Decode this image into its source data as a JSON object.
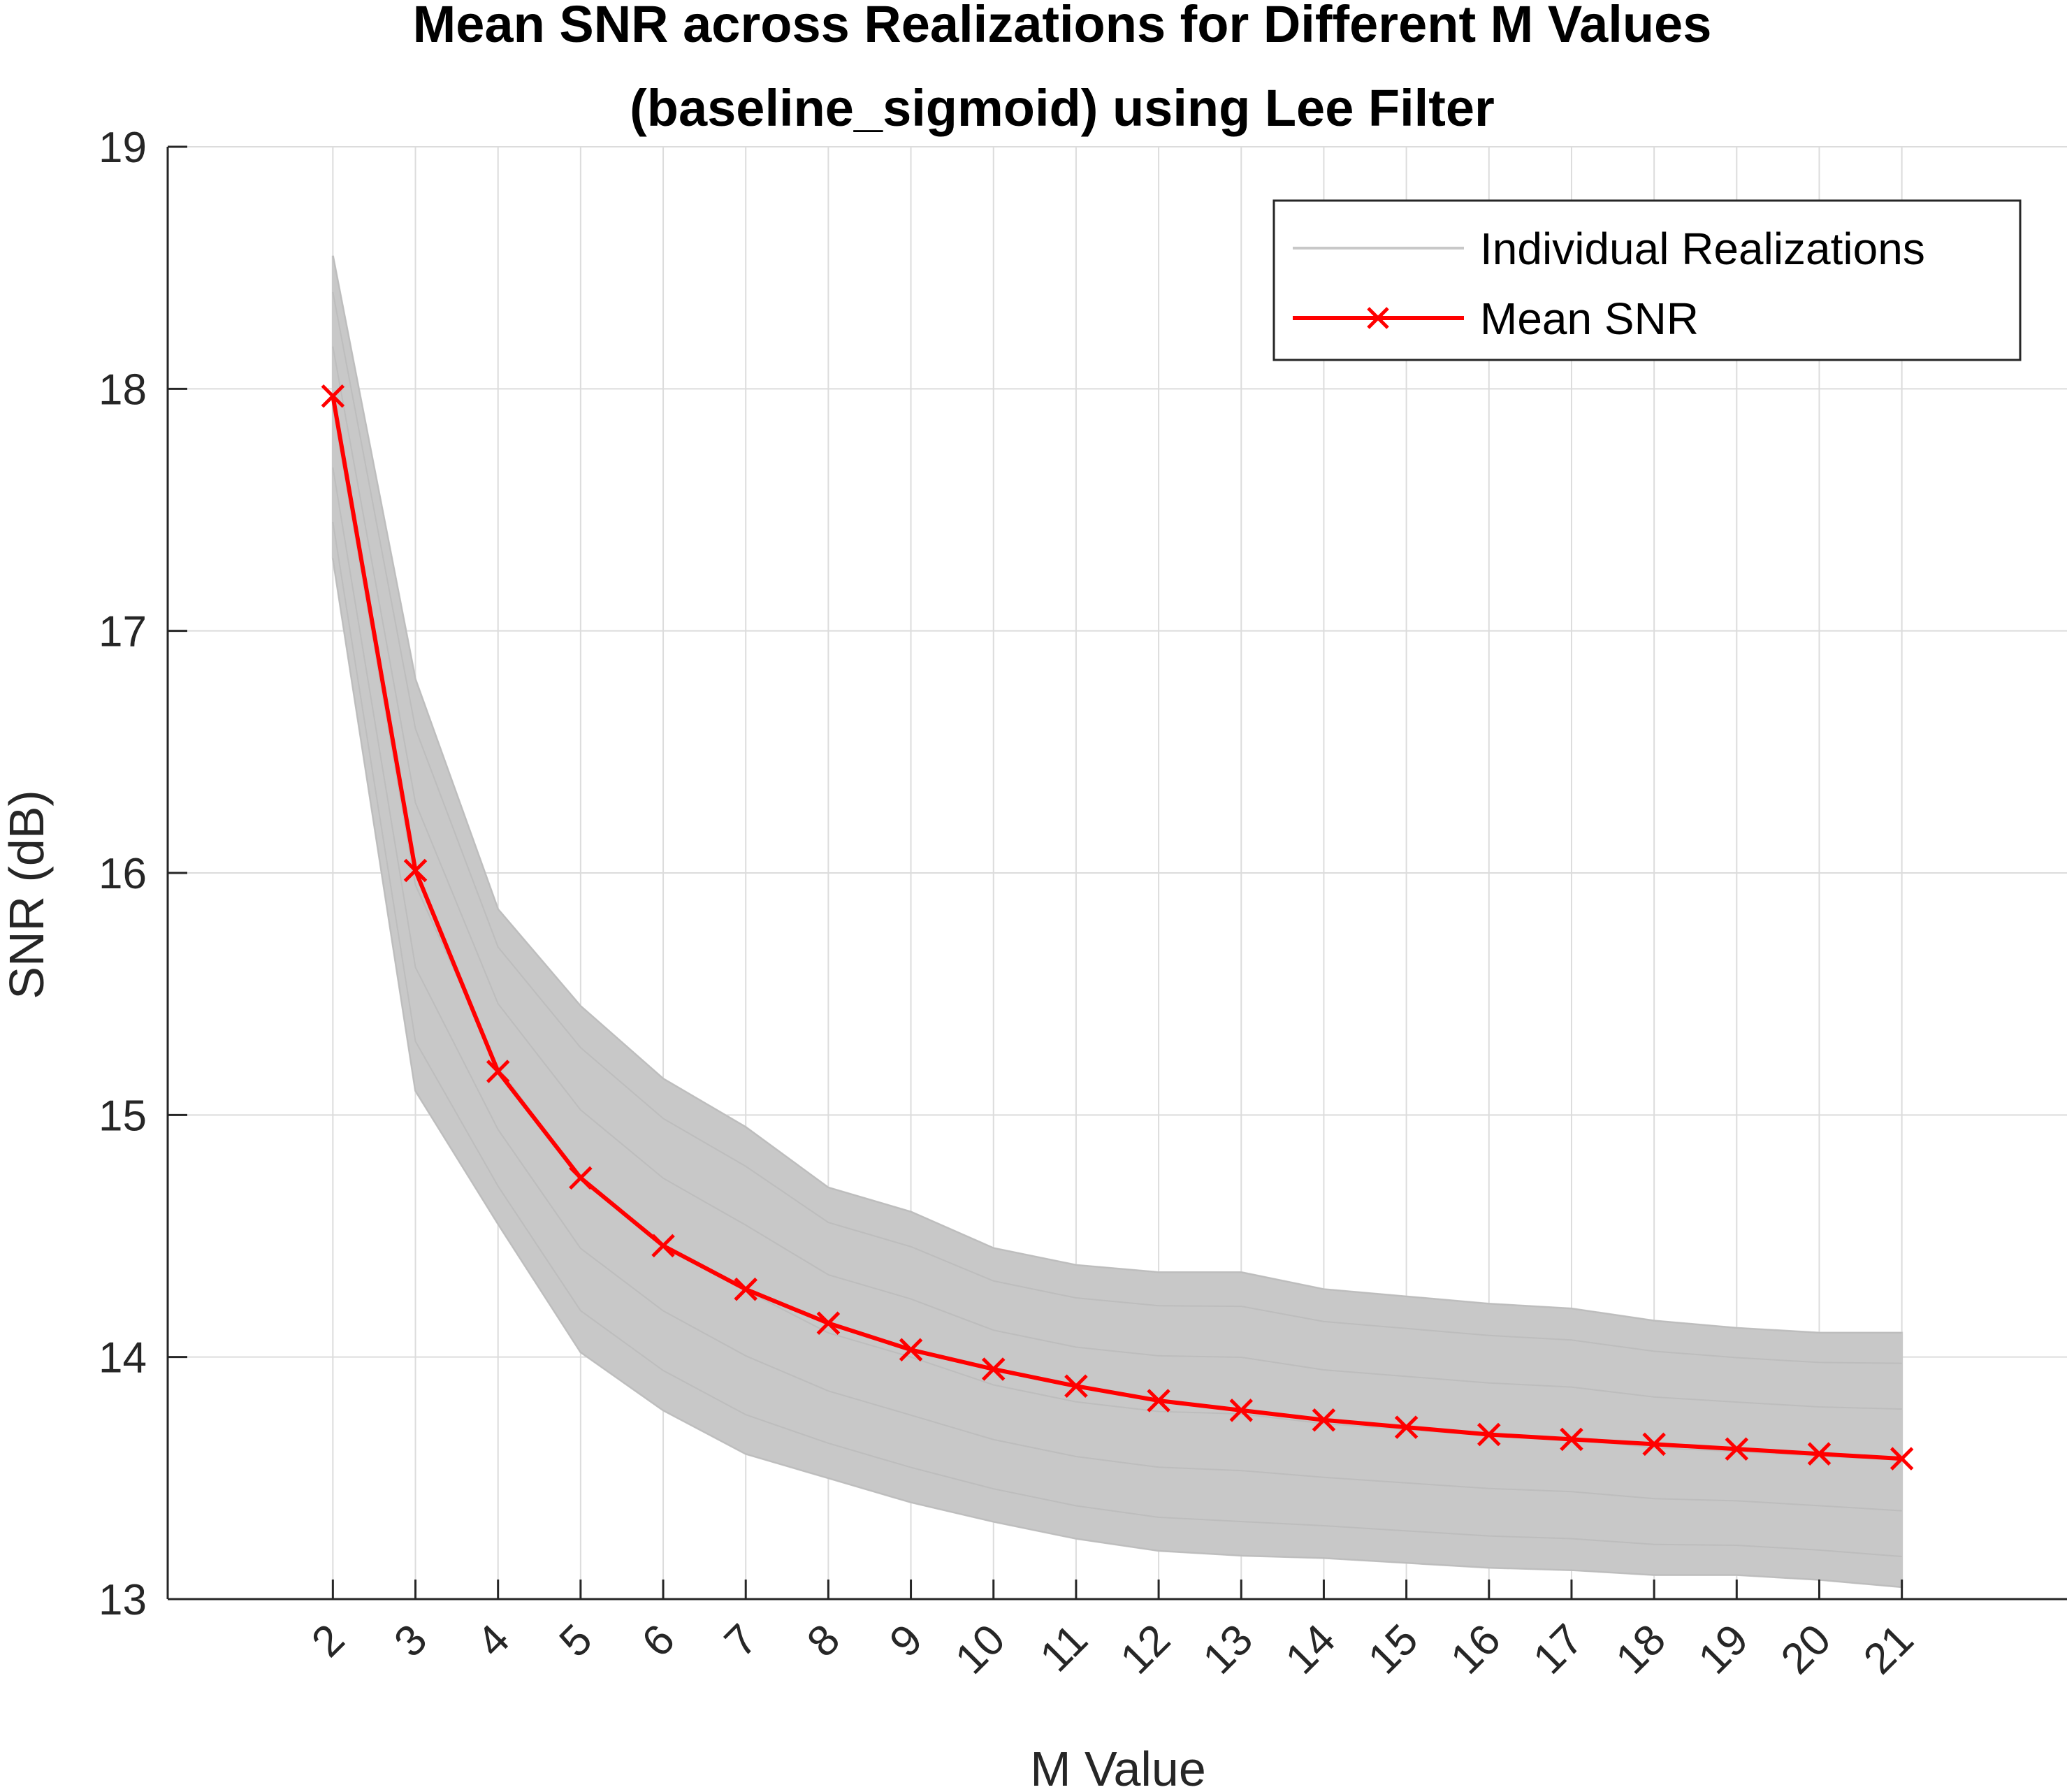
{
  "chart_data": {
    "type": "line",
    "title": "Mean SNR across Realizations for Different M Values",
    "subtitle": "(baseline_sigmoid) using Lee Filter",
    "xlabel": "M Value",
    "ylabel": "SNR (dB)",
    "x": [
      2,
      3,
      4,
      5,
      6,
      7,
      8,
      9,
      10,
      11,
      12,
      13,
      14,
      15,
      16,
      17,
      18,
      19,
      20,
      21
    ],
    "xlim": [
      0,
      23
    ],
    "ylim": [
      13,
      19
    ],
    "yticks": [
      13,
      14,
      15,
      16,
      17,
      18,
      19
    ],
    "xtick_rotation": 45,
    "grid": true,
    "legend_position": "top-right",
    "series": [
      {
        "name": "Individual Realizations",
        "color": "#c8c8c8",
        "style": "line",
        "band_upper": [
          18.55,
          16.8,
          15.85,
          15.45,
          15.15,
          14.95,
          14.7,
          14.6,
          14.45,
          14.38,
          14.35,
          14.35,
          14.28,
          14.25,
          14.22,
          14.2,
          14.15,
          14.12,
          14.1,
          14.1
        ],
        "band_lower": [
          17.3,
          15.1,
          14.55,
          14.02,
          13.78,
          13.6,
          13.5,
          13.4,
          13.32,
          13.25,
          13.2,
          13.18,
          13.17,
          13.15,
          13.13,
          13.12,
          13.1,
          13.1,
          13.08,
          13.05
        ]
      },
      {
        "name": "Mean SNR",
        "color": "#ff0000",
        "style": "line-x-marker",
        "values": [
          17.97,
          16.01,
          15.18,
          14.74,
          14.46,
          14.28,
          14.14,
          14.03,
          13.95,
          13.88,
          13.82,
          13.78,
          13.74,
          13.71,
          13.68,
          13.66,
          13.64,
          13.62,
          13.6,
          13.58
        ]
      }
    ]
  }
}
